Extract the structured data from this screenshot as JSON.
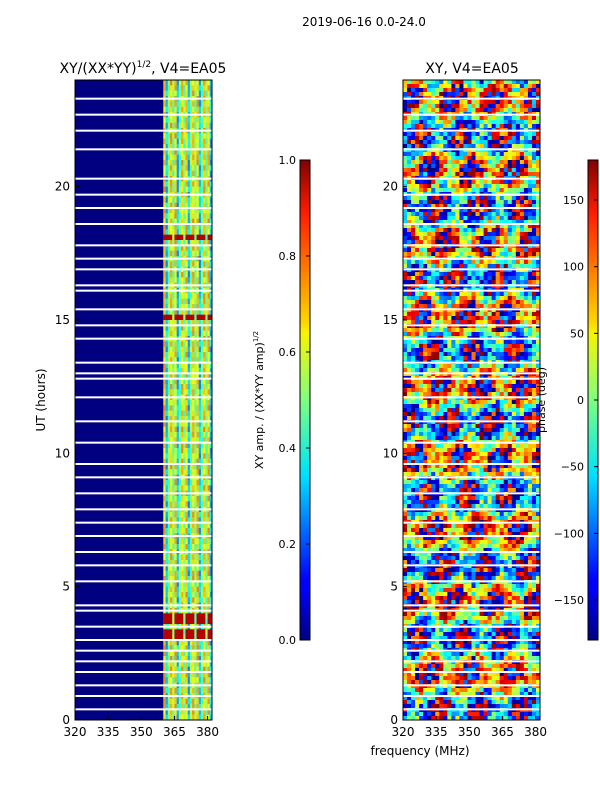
{
  "figure_title": "2019-06-16 0.0-24.0",
  "chart_data": [
    {
      "type": "heatmap",
      "title_main": "XY/(XX*YY)",
      "title_sup": "1/2",
      "title_tail": ", V4=EA05",
      "xlabel": "",
      "ylabel": "UT (hours)",
      "xlim": [
        320,
        382
      ],
      "ylim": [
        0,
        24
      ],
      "xticks": [
        320,
        335,
        350,
        365,
        380
      ],
      "yticks": [
        0,
        5,
        10,
        15,
        20
      ],
      "colorbar": {
        "label_main": "XY amp. / (XX*YY amp)",
        "label_sup": "1/2",
        "range": [
          0.0,
          1.0
        ],
        "ticks": [
          "0.0",
          "0.2",
          "0.4",
          "0.6",
          "0.8",
          "1.0"
        ],
        "tick_values": [
          0.0,
          0.2,
          0.4,
          0.6,
          0.8,
          1.0
        ],
        "colormap": "jet"
      },
      "description_bands": {
        "low_freq_range_mhz": [
          320,
          360
        ],
        "low_freq_value": 0.0,
        "high_freq_range_mhz": [
          360,
          382
        ],
        "high_freq_value_range": [
          0.3,
          0.6
        ],
        "peak_rows_hours": [
          3.2,
          3.8,
          15.1,
          18.1
        ],
        "peak_value": 0.95
      }
    },
    {
      "type": "heatmap",
      "title_main": "XY, V4=EA05",
      "xlabel": "frequency (MHz)",
      "ylabel": "",
      "xlim": [
        320,
        382
      ],
      "ylim": [
        0,
        24
      ],
      "xticks": [
        320,
        335,
        350,
        365,
        380
      ],
      "yticks": [
        0,
        5,
        10,
        15,
        20
      ],
      "colorbar": {
        "label": "phase (deg)",
        "range": [
          -180,
          180
        ],
        "ticks": [
          "−150",
          "−100",
          "−50",
          "0",
          "50",
          "100",
          "150"
        ],
        "tick_values": [
          -150,
          -100,
          -50,
          0,
          50,
          100,
          150
        ],
        "colormap": "jet"
      }
    }
  ],
  "flagged_rows_hours": [
    0.4,
    0.9,
    1.3,
    1.8,
    2.2,
    2.6,
    3.0,
    3.5,
    4.1,
    4.3,
    5.2,
    5.8,
    6.3,
    6.9,
    7.4,
    7.9,
    8.5,
    9.1,
    9.6,
    10.4,
    11.2,
    12.1,
    12.8,
    13.0,
    13.4,
    14.3,
    14.8,
    15.4,
    16.1,
    16.3,
    16.9,
    17.3,
    17.8,
    18.6,
    19.2,
    19.7,
    20.3,
    21.4,
    22.1,
    22.7,
    23.3
  ]
}
